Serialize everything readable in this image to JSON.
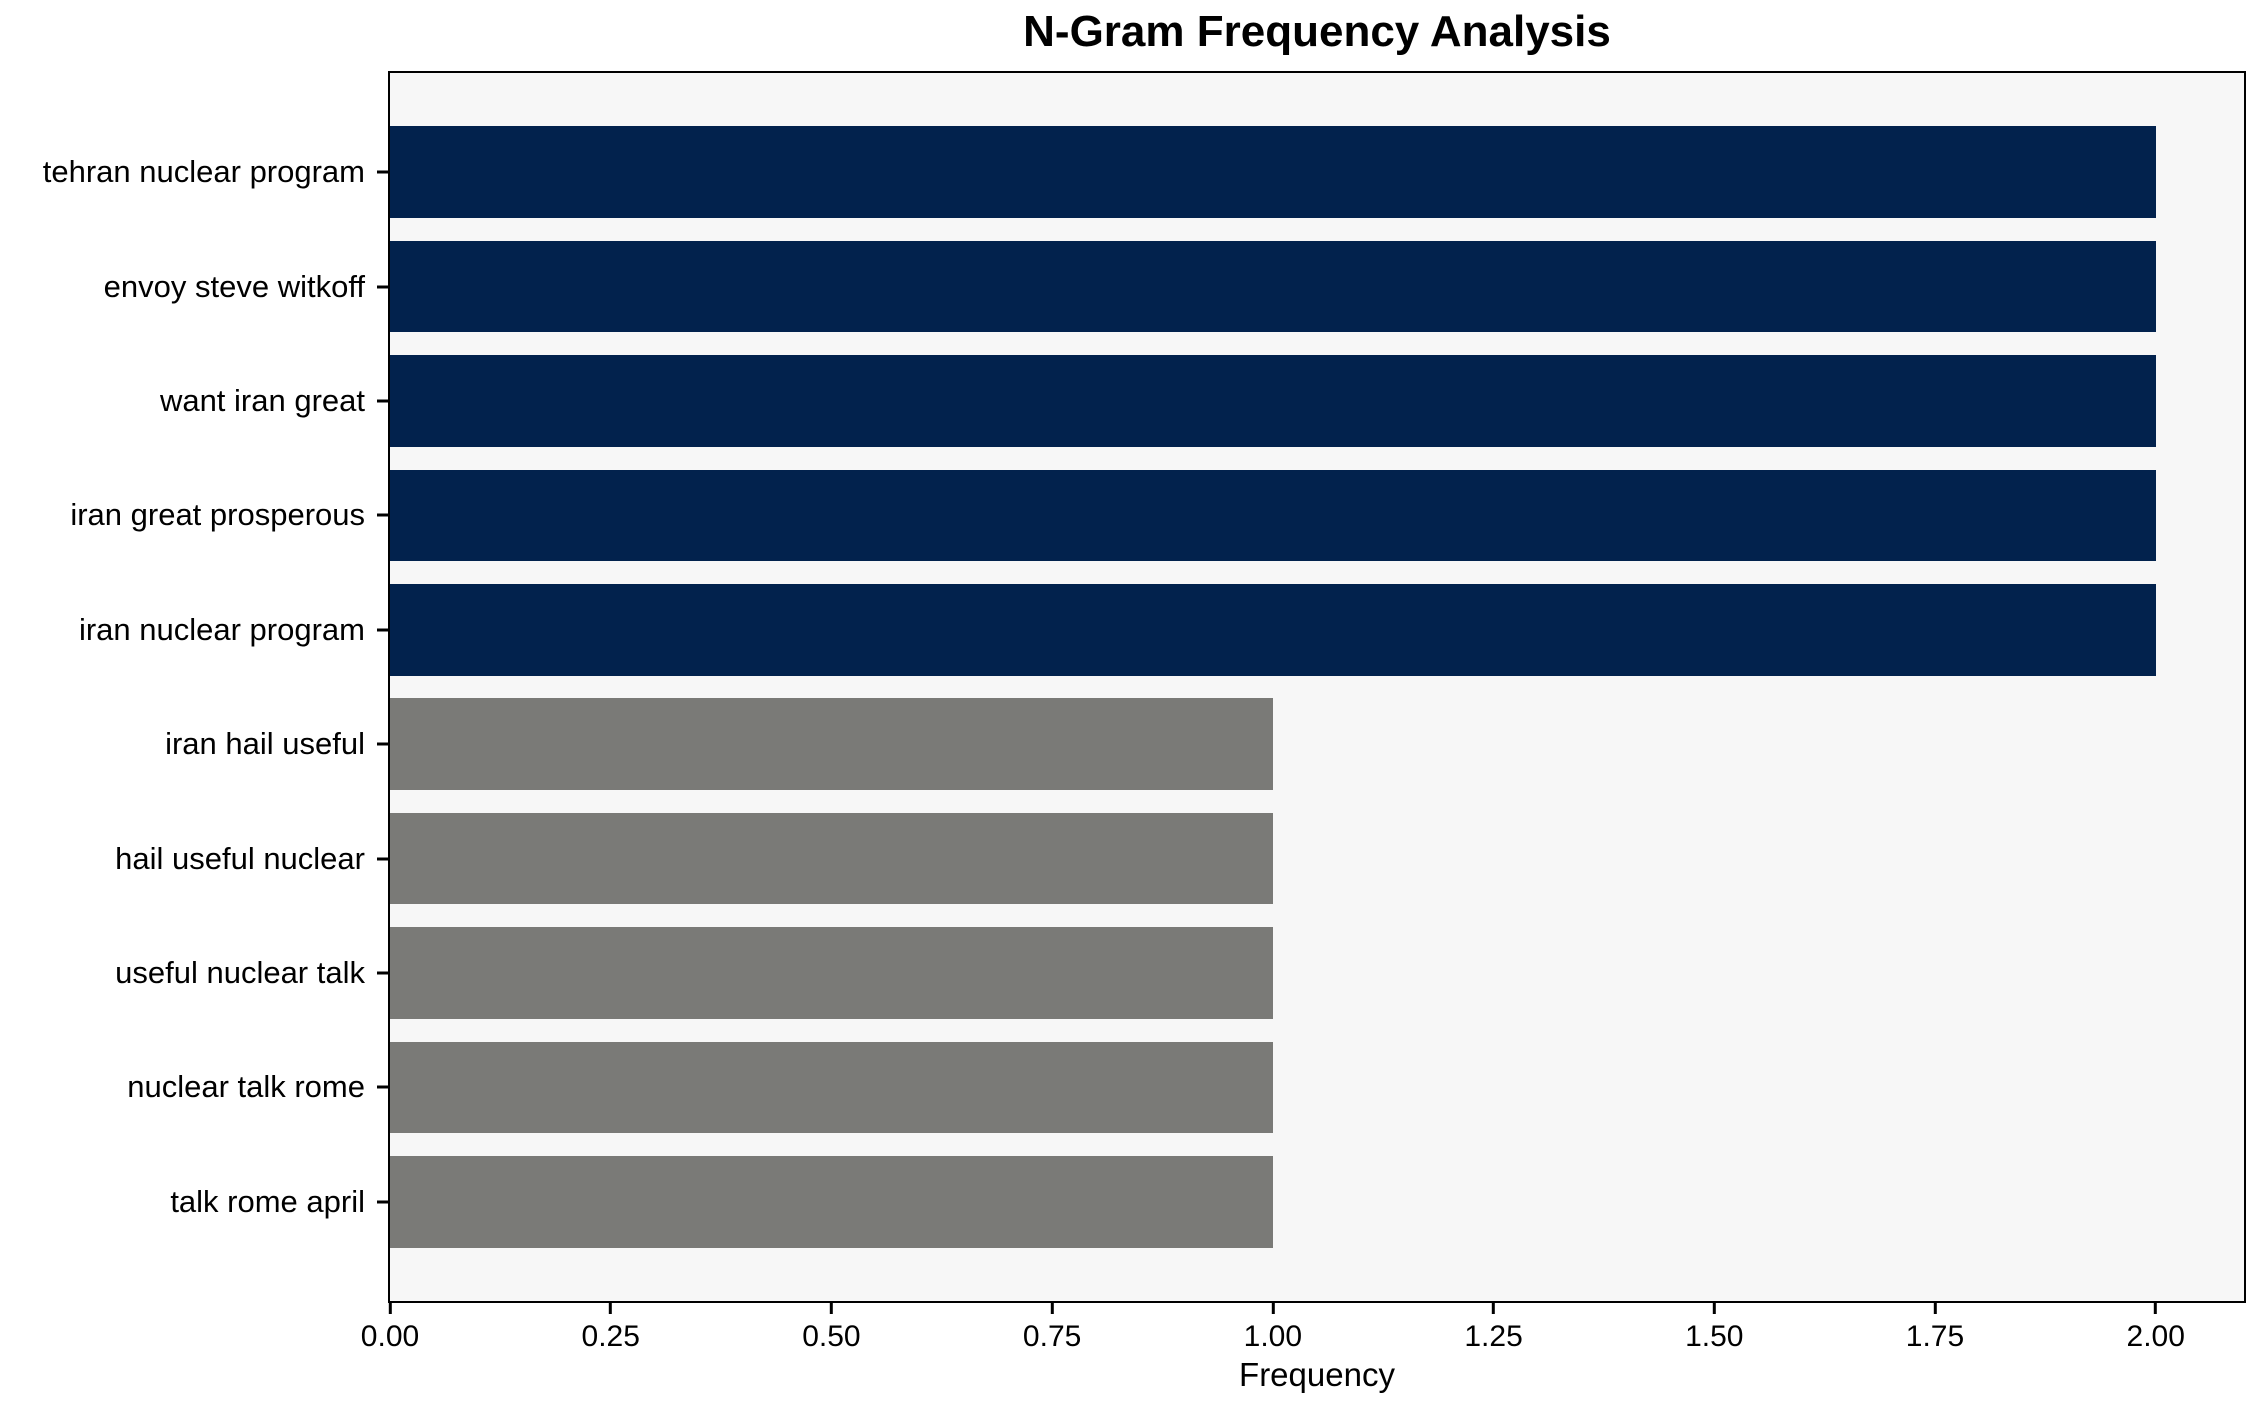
{
  "chart_data": {
    "type": "bar",
    "orientation": "horizontal",
    "title": "N-Gram Frequency Analysis",
    "xlabel": "Frequency",
    "ylabel": "",
    "categories": [
      "tehran nuclear program",
      "envoy steve witkoff",
      "want iran great",
      "iran great prosperous",
      "iran nuclear program",
      "iran hail useful",
      "hail useful nuclear",
      "useful nuclear talk",
      "nuclear talk rome",
      "talk rome april"
    ],
    "values": [
      2,
      2,
      2,
      2,
      2,
      1,
      1,
      1,
      1,
      1
    ],
    "bar_colors": [
      "#02224d",
      "#02224d",
      "#02224d",
      "#02224d",
      "#02224d",
      "#7a7a77",
      "#7a7a77",
      "#7a7a77",
      "#7a7a77",
      "#7a7a77"
    ],
    "xlim": [
      0,
      2.1
    ],
    "xticks": {
      "values": [
        0,
        0.25,
        0.5,
        0.75,
        1.0,
        1.25,
        1.5,
        1.75,
        2.0
      ],
      "labels": [
        "0.00",
        "0.25",
        "0.50",
        "0.75",
        "1.00",
        "1.25",
        "1.50",
        "1.75",
        "2.00"
      ]
    },
    "grid": false,
    "legend": "none",
    "plot_background": "#f7f7f7",
    "figure_background": "#ffffff",
    "spine_color": "#000000"
  }
}
